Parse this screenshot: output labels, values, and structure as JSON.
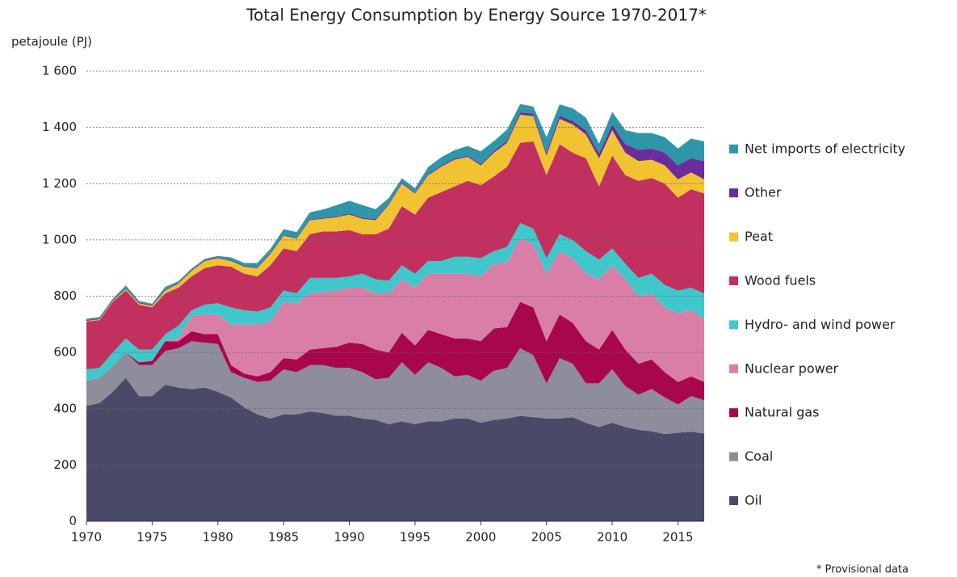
{
  "chart_data": {
    "type": "stacked_area",
    "title": "Total Energy Consumption by Energy Source 1970-2017*",
    "y_label": "petajoule (PJ)",
    "note": "* Provisional data",
    "x": [
      1970,
      1971,
      1972,
      1973,
      1974,
      1975,
      1976,
      1977,
      1978,
      1979,
      1980,
      1981,
      1982,
      1983,
      1984,
      1985,
      1986,
      1987,
      1988,
      1989,
      1990,
      1991,
      1992,
      1993,
      1994,
      1995,
      1996,
      1997,
      1998,
      1999,
      2000,
      2001,
      2002,
      2003,
      2004,
      2005,
      2006,
      2007,
      2008,
      2009,
      2010,
      2011,
      2012,
      2013,
      2014,
      2015,
      2016,
      2017
    ],
    "xlim": [
      1970,
      2017
    ],
    "xticks": [
      1970,
      1975,
      1980,
      1985,
      1990,
      1995,
      2000,
      2005,
      2010,
      2015
    ],
    "ylim": [
      0,
      1600
    ],
    "yticks": [
      0,
      200,
      400,
      600,
      800,
      {
        "value": 1000,
        "label": "1 000"
      },
      {
        "value": 1200,
        "label": "1 200"
      },
      {
        "value": 1400,
        "label": "1 400"
      },
      {
        "value": 1600,
        "label": "1 600"
      }
    ],
    "grid": true,
    "legend": "right",
    "series": [
      {
        "name": "Oil",
        "color": "#4a4a68",
        "values": [
          410,
          420,
          460,
          510,
          445,
          445,
          485,
          475,
          470,
          475,
          460,
          440,
          405,
          380,
          365,
          380,
          380,
          390,
          385,
          375,
          375,
          365,
          360,
          345,
          355,
          345,
          355,
          355,
          365,
          365,
          350,
          360,
          365,
          375,
          370,
          365,
          365,
          370,
          350,
          335,
          350,
          335,
          325,
          320,
          310,
          315,
          318,
          312
        ]
      },
      {
        "name": "Coal",
        "color": "#8d8d9b",
        "values": [
          90,
          90,
          90,
          90,
          110,
          110,
          120,
          140,
          170,
          160,
          170,
          90,
          105,
          115,
          135,
          160,
          150,
          165,
          170,
          170,
          170,
          165,
          145,
          165,
          210,
          175,
          210,
          190,
          150,
          155,
          150,
          175,
          180,
          240,
          220,
          125,
          215,
          190,
          140,
          155,
          190,
          145,
          125,
          150,
          130,
          100,
          127,
          118
        ]
      },
      {
        "name": "Natural gas",
        "color": "#a8074c",
        "values": [
          0,
          0,
          0,
          0,
          10,
          15,
          35,
          25,
          35,
          30,
          35,
          25,
          15,
          20,
          30,
          40,
          45,
          55,
          60,
          75,
          90,
          100,
          105,
          90,
          105,
          105,
          115,
          120,
          135,
          130,
          140,
          150,
          145,
          165,
          170,
          150,
          155,
          145,
          150,
          120,
          140,
          130,
          110,
          105,
          90,
          80,
          70,
          65
        ]
      },
      {
        "name": "Nuclear power",
        "color": "#d97fa7",
        "values": [
          0,
          0,
          0,
          0,
          0,
          0,
          0,
          10,
          55,
          70,
          70,
          145,
          175,
          185,
          180,
          200,
          200,
          200,
          200,
          200,
          195,
          200,
          200,
          210,
          190,
          205,
          200,
          215,
          230,
          230,
          230,
          230,
          230,
          225,
          225,
          240,
          225,
          230,
          240,
          250,
          230,
          250,
          240,
          235,
          230,
          245,
          235,
          225
        ]
      },
      {
        "name": "Hydro- and wind power",
        "color": "#3fc7cc",
        "values": [
          40,
          35,
          50,
          50,
          45,
          40,
          25,
          45,
          20,
          35,
          40,
          60,
          50,
          45,
          50,
          40,
          35,
          55,
          50,
          45,
          40,
          50,
          50,
          45,
          50,
          50,
          45,
          45,
          60,
          60,
          65,
          45,
          55,
          55,
          55,
          55,
          60,
          65,
          80,
          70,
          60,
          55,
          65,
          70,
          80,
          80,
          80,
          90
        ]
      },
      {
        "name": "Wood fuels",
        "color": "#c1305f",
        "values": [
          170,
          170,
          180,
          170,
          160,
          150,
          145,
          135,
          120,
          130,
          135,
          145,
          130,
          125,
          150,
          150,
          150,
          155,
          165,
          165,
          165,
          140,
          160,
          185,
          210,
          210,
          225,
          245,
          250,
          270,
          260,
          265,
          285,
          285,
          310,
          295,
          320,
          310,
          330,
          260,
          330,
          315,
          345,
          340,
          360,
          330,
          350,
          355
        ]
      },
      {
        "name": "Peat",
        "color": "#f1c232",
        "values": [
          2,
          3,
          3,
          5,
          5,
          5,
          10,
          15,
          20,
          25,
          25,
          20,
          25,
          30,
          40,
          45,
          45,
          50,
          45,
          50,
          55,
          55,
          50,
          85,
          80,
          75,
          80,
          90,
          95,
          85,
          70,
          85,
          85,
          100,
          90,
          70,
          90,
          100,
          85,
          100,
          90,
          80,
          70,
          65,
          65,
          65,
          60,
          50
        ]
      },
      {
        "name": "Other",
        "color": "#6b2c9c",
        "values": [
          3,
          3,
          3,
          3,
          3,
          3,
          3,
          3,
          3,
          3,
          3,
          3,
          3,
          3,
          3,
          3,
          3,
          3,
          3,
          3,
          4,
          4,
          4,
          4,
          4,
          4,
          4,
          4,
          4,
          4,
          5,
          6,
          7,
          8,
          9,
          10,
          12,
          13,
          15,
          17,
          20,
          30,
          40,
          40,
          45,
          50,
          50,
          65
        ]
      },
      {
        "name": "Net imports of electricity",
        "color": "#2f95a9",
        "values": [
          5,
          5,
          5,
          10,
          5,
          5,
          10,
          5,
          5,
          5,
          5,
          10,
          10,
          15,
          15,
          20,
          20,
          25,
          30,
          40,
          45,
          45,
          35,
          20,
          15,
          15,
          25,
          30,
          30,
          35,
          45,
          35,
          40,
          30,
          25,
          55,
          40,
          45,
          45,
          35,
          45,
          50,
          60,
          55,
          55,
          60,
          70,
          70
        ]
      }
    ]
  }
}
